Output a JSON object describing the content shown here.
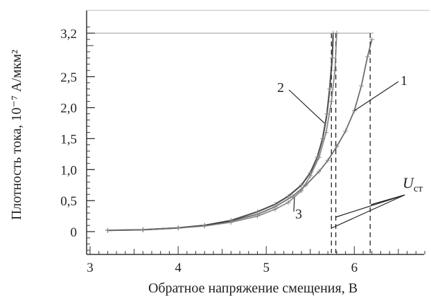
{
  "chart_data": {
    "type": "line",
    "xlabel": "Обратное напряжение смещения, В",
    "ylabel": "Плотность тока, 10⁻⁷ А/мкм²",
    "xlim": [
      3,
      6.8
    ],
    "ylim": [
      -0.4,
      3.45
    ],
    "x_ticks": [
      "3",
      "4",
      "5",
      "6"
    ],
    "x_tick_values": [
      3,
      4,
      5,
      6
    ],
    "y_ticks": [
      "0",
      "0,5",
      "1,0",
      "1,5",
      "2,0",
      "2,5",
      "3,2"
    ],
    "y_tick_values": [
      0,
      0.5,
      1.0,
      1.5,
      2.0,
      2.5,
      3.2
    ],
    "grid": false,
    "series": [
      {
        "name": "1",
        "color": "#555555",
        "points": [
          [
            3.2,
            0.02
          ],
          [
            3.6,
            0.03
          ],
          [
            4.0,
            0.06
          ],
          [
            4.3,
            0.1
          ],
          [
            4.6,
            0.17
          ],
          [
            4.9,
            0.28
          ],
          [
            5.1,
            0.4
          ],
          [
            5.3,
            0.57
          ],
          [
            5.45,
            0.75
          ],
          [
            5.6,
            0.97
          ],
          [
            5.7,
            1.15
          ],
          [
            5.8,
            1.37
          ],
          [
            5.9,
            1.62
          ],
          [
            6.0,
            1.95
          ],
          [
            6.08,
            2.35
          ],
          [
            6.15,
            2.82
          ],
          [
            6.2,
            3.1
          ]
        ]
      },
      {
        "name": "2",
        "color": "#333333",
        "points": [
          [
            3.2,
            0.02
          ],
          [
            3.6,
            0.03
          ],
          [
            4.0,
            0.06
          ],
          [
            4.3,
            0.1
          ],
          [
            4.6,
            0.18
          ],
          [
            4.9,
            0.32
          ],
          [
            5.1,
            0.44
          ],
          [
            5.25,
            0.57
          ],
          [
            5.4,
            0.75
          ],
          [
            5.5,
            0.95
          ],
          [
            5.58,
            1.2
          ],
          [
            5.64,
            1.5
          ],
          [
            5.69,
            1.9
          ],
          [
            5.72,
            2.3
          ],
          [
            5.75,
            2.8
          ],
          [
            5.76,
            3.2
          ]
        ]
      },
      {
        "name": "3",
        "color": "#777777",
        "points": [
          [
            3.2,
            0.02
          ],
          [
            3.6,
            0.03
          ],
          [
            4.0,
            0.06
          ],
          [
            4.3,
            0.09
          ],
          [
            4.6,
            0.15
          ],
          [
            4.9,
            0.25
          ],
          [
            5.1,
            0.36
          ],
          [
            5.25,
            0.47
          ],
          [
            5.4,
            0.66
          ],
          [
            5.5,
            0.9
          ],
          [
            5.6,
            1.2
          ],
          [
            5.68,
            1.6
          ],
          [
            5.74,
            2.1
          ],
          [
            5.78,
            2.6
          ],
          [
            5.8,
            3.2
          ]
        ]
      }
    ],
    "breakdown_voltages": [
      5.74,
      5.79,
      6.18
    ],
    "ucr_label": "U",
    "ucr_sub": "ст",
    "curve_labels": [
      "1",
      "2",
      "3"
    ]
  }
}
